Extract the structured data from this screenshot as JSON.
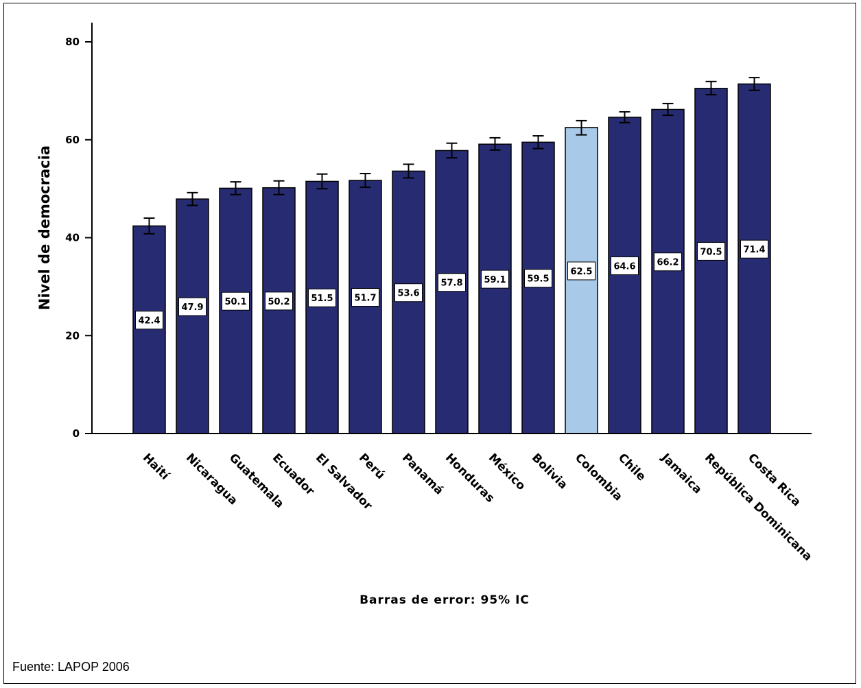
{
  "chart_data": {
    "type": "bar",
    "categories": [
      "Haití",
      "Nicaragua",
      "Guatemala",
      "Ecuador",
      "El Salvador",
      "Perú",
      "Panamá",
      "Honduras",
      "México",
      "Bolivia",
      "Colombia",
      "Chile",
      "Jamaica",
      "República Dominicana",
      "Costa Rica"
    ],
    "values": [
      42.4,
      47.9,
      50.1,
      50.2,
      51.5,
      51.7,
      53.6,
      57.8,
      59.1,
      59.5,
      62.5,
      64.6,
      66.2,
      70.5,
      71.4
    ],
    "value_labels": [
      "42.4",
      "47.9",
      "50.1",
      "50.2",
      "51.5",
      "51.7",
      "53.6",
      "57.8",
      "59.1",
      "59.5",
      "62.5",
      "64.6",
      "66.2",
      "70.5",
      "71.4"
    ],
    "error_low": [
      40.8,
      46.6,
      48.8,
      48.8,
      50.0,
      50.3,
      52.2,
      56.3,
      57.9,
      58.2,
      61.0,
      63.5,
      65.0,
      69.2,
      70.1
    ],
    "error_high": [
      44.0,
      49.2,
      51.4,
      51.6,
      53.0,
      53.1,
      55.0,
      59.3,
      60.4,
      60.8,
      63.9,
      65.7,
      67.4,
      71.9,
      72.7
    ],
    "highlight_index": 10,
    "colors": {
      "bar": "#272c72",
      "highlight": "#a9c9e8",
      "edge": "#000000"
    },
    "ylabel": "Nivel de democracia",
    "xlabel": "",
    "ylim": [
      0,
      80
    ],
    "yticks": [
      "0",
      "20",
      "40",
      "60",
      "80"
    ],
    "note": "Barras de error: 95% IC",
    "grid": false
  },
  "source": "Fuente: LAPOP 2006"
}
